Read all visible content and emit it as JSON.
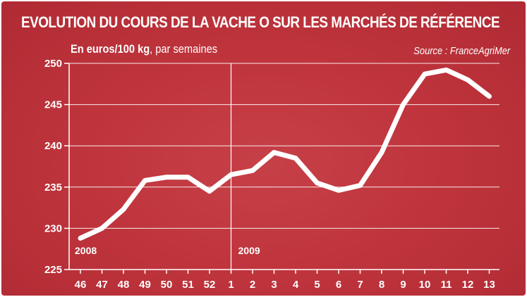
{
  "header": {
    "title": "EVOLUTION DU COURS DE LA VACHE O SUR LES MARCHÉS DE RÉFÉRENCE",
    "subtitle_bold": "En euros/100 kg",
    "subtitle_rest": ", par semaines",
    "source": "Source : FranceAgriMer"
  },
  "colors": {
    "background": "#c0353d",
    "line": "#ffffff",
    "grid": "#ffffff"
  },
  "chart_data": {
    "type": "line",
    "title": "EVOLUTION DU COURS DE LA VACHE O SUR LES MARCHÉS DE RÉFÉRENCE",
    "ylabel": "En euros/100 kg, par semaines",
    "xlabel": "",
    "categories": [
      "46",
      "47",
      "48",
      "49",
      "50",
      "51",
      "52",
      "1",
      "2",
      "3",
      "4",
      "5",
      "6",
      "7",
      "8",
      "9",
      "10",
      "11",
      "12",
      "13"
    ],
    "series": [
      {
        "values": [
          228.8,
          230.0,
          232.3,
          235.8,
          236.2,
          236.2,
          234.5,
          236.5,
          237.0,
          239.2,
          238.5,
          235.5,
          234.6,
          235.2,
          239.2,
          245.0,
          248.7,
          249.2,
          248.0,
          246.0
        ]
      }
    ],
    "ylim": [
      225,
      250
    ],
    "yticks": [
      225,
      230,
      235,
      240,
      245,
      250
    ],
    "year_labels": [
      {
        "label": "2008",
        "at_category": "46"
      },
      {
        "label": "2009",
        "at_category": "1"
      }
    ],
    "year_divider_at": "1",
    "grid": true,
    "legend": "none"
  }
}
